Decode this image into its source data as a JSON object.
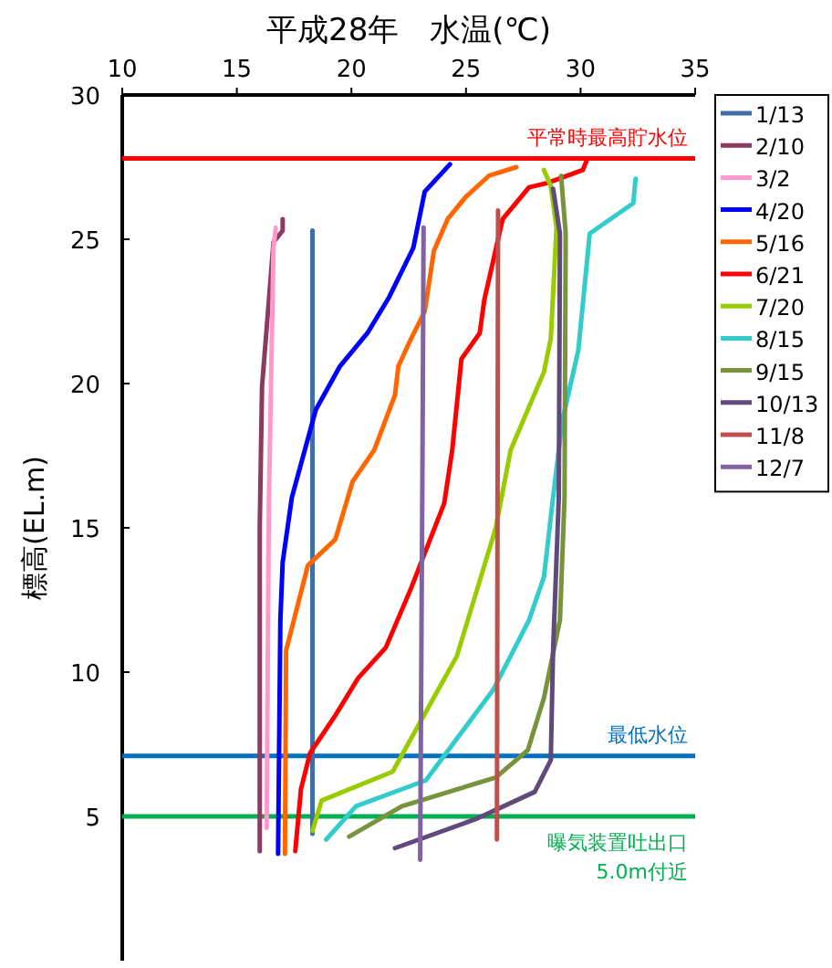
{
  "chart_data": {
    "type": "line",
    "title": "平成28年　水温(℃)",
    "ylabel": "標高(EL.m)",
    "xlim": [
      10,
      35
    ],
    "xticks": [
      10,
      15,
      20,
      25,
      30,
      35
    ],
    "ylim": [
      0,
      30
    ],
    "yticks": [
      5,
      10,
      15,
      20,
      25,
      30
    ],
    "legend": "right",
    "grid": false,
    "marker": "none",
    "line_style": "solid",
    "series": [
      {
        "name": "1/13",
        "color": "#3f6ea8",
        "x": [
          18.3,
          18.3
        ],
        "values": [
          25.3,
          4.4
        ]
      },
      {
        "name": "2/10",
        "color": "#8b3a62",
        "x": [
          17.0,
          17.0,
          16.6,
          16.1,
          16.0,
          16.0
        ],
        "values": [
          25.7,
          25.3,
          24.9,
          19.9,
          15.0,
          3.8
        ]
      },
      {
        "name": "3/2",
        "color": "#ff99cc",
        "x": [
          16.7,
          16.6,
          16.4,
          16.3
        ],
        "values": [
          25.4,
          24.7,
          16.0,
          4.6
        ]
      },
      {
        "name": "4/20",
        "color": "#0000ff",
        "x": [
          24.3,
          23.2,
          22.7,
          21.65,
          20.7,
          19.5,
          18.45,
          17.4,
          17.0,
          16.9,
          16.8
        ],
        "values": [
          27.6,
          26.65,
          24.7,
          23.0,
          21.75,
          20.6,
          19.1,
          16.05,
          13.8,
          11.8,
          3.7
        ]
      },
      {
        "name": "5/16",
        "color": "#ff6600",
        "x": [
          27.2,
          26.0,
          24.97,
          24.2,
          23.6,
          23.2,
          22.6,
          22.05,
          21.9,
          21.0,
          20.05,
          19.3,
          18.1,
          17.15,
          17.1
        ],
        "values": [
          27.5,
          27.2,
          26.45,
          25.7,
          24.6,
          22.5,
          21.55,
          20.6,
          19.6,
          17.7,
          16.6,
          14.6,
          13.7,
          10.75,
          3.7
        ]
      },
      {
        "name": "6/21",
        "color": "#ff0000",
        "x": [
          30.3,
          30.1,
          28.55,
          27.75,
          26.6,
          25.8,
          25.6,
          24.8,
          24.4,
          24.05,
          22.6,
          21.5,
          20.3,
          19.3,
          18.2,
          17.8,
          17.55
        ],
        "values": [
          27.8,
          27.4,
          26.95,
          26.8,
          25.7,
          22.9,
          21.75,
          20.85,
          17.7,
          15.85,
          12.9,
          10.85,
          9.8,
          8.5,
          7.2,
          5.95,
          3.8
        ]
      },
      {
        "name": "7/20",
        "color": "#99cc00",
        "x": [
          28.4,
          28.7,
          28.95,
          28.7,
          28.4,
          26.95,
          26.3,
          24.6,
          21.8,
          18.7,
          18.3
        ],
        "values": [
          27.4,
          26.85,
          25.4,
          21.55,
          20.4,
          17.7,
          15.0,
          10.55,
          6.55,
          5.55,
          4.5
        ]
      },
      {
        "name": "8/15",
        "color": "#33cccc",
        "x": [
          32.4,
          32.3,
          30.4,
          29.9,
          29.2,
          28.8,
          28.4,
          27.75,
          26.2,
          23.25,
          20.2,
          18.9
        ],
        "values": [
          27.1,
          26.25,
          25.2,
          21.15,
          18.7,
          16.05,
          13.3,
          11.8,
          9.4,
          6.25,
          5.35,
          4.2
        ]
      },
      {
        "name": "9/15",
        "color": "#77933c",
        "x": [
          29.15,
          29.35,
          29.3,
          29.1,
          28.4,
          27.7,
          26.3,
          22.2,
          19.9
        ],
        "values": [
          27.2,
          25.2,
          16.05,
          11.8,
          9.1,
          7.3,
          6.35,
          5.35,
          4.3
        ]
      },
      {
        "name": "10/13",
        "color": "#604a7b",
        "x": [
          28.8,
          29.1,
          29.05,
          28.8,
          28.7,
          28.0,
          25.4,
          21.9
        ],
        "values": [
          26.75,
          25.2,
          16.05,
          10.75,
          6.95,
          5.85,
          4.9,
          3.9
        ]
      },
      {
        "name": "11/8",
        "color": "#c0504d",
        "x": [
          26.4,
          26.35
        ],
        "values": [
          26.0,
          4.2
        ]
      },
      {
        "name": "12/7",
        "color": "#8064a2",
        "x": [
          23.15,
          23.1,
          23.0
        ],
        "values": [
          25.4,
          17.2,
          3.5
        ]
      }
    ],
    "ref_lines": [
      {
        "axis": "y",
        "value": 27.8,
        "label": "平常時最高貯水位",
        "color": "#ff0000"
      },
      {
        "axis": "y",
        "value": 7.1,
        "label": "最低水位",
        "color": "#0070c0"
      },
      {
        "axis": "y",
        "value": 5.0,
        "label": "曝気装置吐出口\n5.0m付近",
        "color": "#00b050"
      }
    ]
  }
}
